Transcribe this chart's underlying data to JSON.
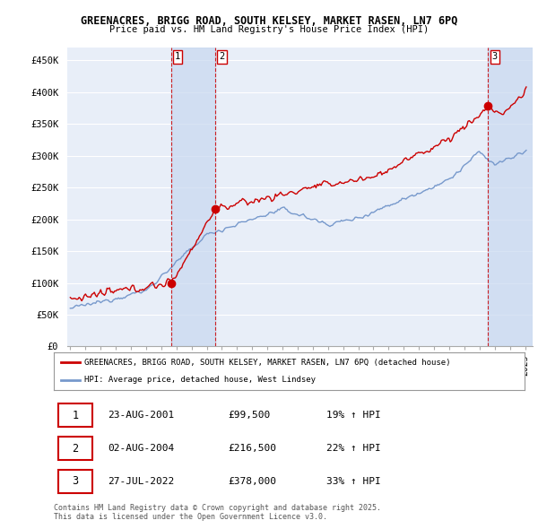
{
  "title1": "GREENACRES, BRIGG ROAD, SOUTH KELSEY, MARKET RASEN, LN7 6PQ",
  "title2": "Price paid vs. HM Land Registry's House Price Index (HPI)",
  "ylabel_ticks": [
    "£0",
    "£50K",
    "£100K",
    "£150K",
    "£200K",
    "£250K",
    "£300K",
    "£350K",
    "£400K",
    "£450K"
  ],
  "ytick_values": [
    0,
    50000,
    100000,
    150000,
    200000,
    250000,
    300000,
    350000,
    400000,
    450000
  ],
  "ylim": [
    0,
    470000
  ],
  "xlim_start": 1994.8,
  "xlim_end": 2025.5,
  "background_color": "#ffffff",
  "plot_bg_color": "#e8eef8",
  "grid_color": "#ffffff",
  "red_color": "#cc0000",
  "blue_color": "#7799cc",
  "sale_dates": [
    2001.64,
    2004.58,
    2022.57
  ],
  "sale_prices": [
    99500,
    216500,
    378000
  ],
  "sale_labels": [
    "1",
    "2",
    "3"
  ],
  "vline_color": "#cc0000",
  "shade_color": "#c8d8f0",
  "legend_entries": [
    "GREENACRES, BRIGG ROAD, SOUTH KELSEY, MARKET RASEN, LN7 6PQ (detached house)",
    "HPI: Average price, detached house, West Lindsey"
  ],
  "table_data": [
    [
      "1",
      "23-AUG-2001",
      "£99,500",
      "19% ↑ HPI"
    ],
    [
      "2",
      "02-AUG-2004",
      "£216,500",
      "22% ↑ HPI"
    ],
    [
      "3",
      "27-JUL-2022",
      "£378,000",
      "33% ↑ HPI"
    ]
  ],
  "footnote": "Contains HM Land Registry data © Crown copyright and database right 2025.\nThis data is licensed under the Open Government Licence v3.0."
}
